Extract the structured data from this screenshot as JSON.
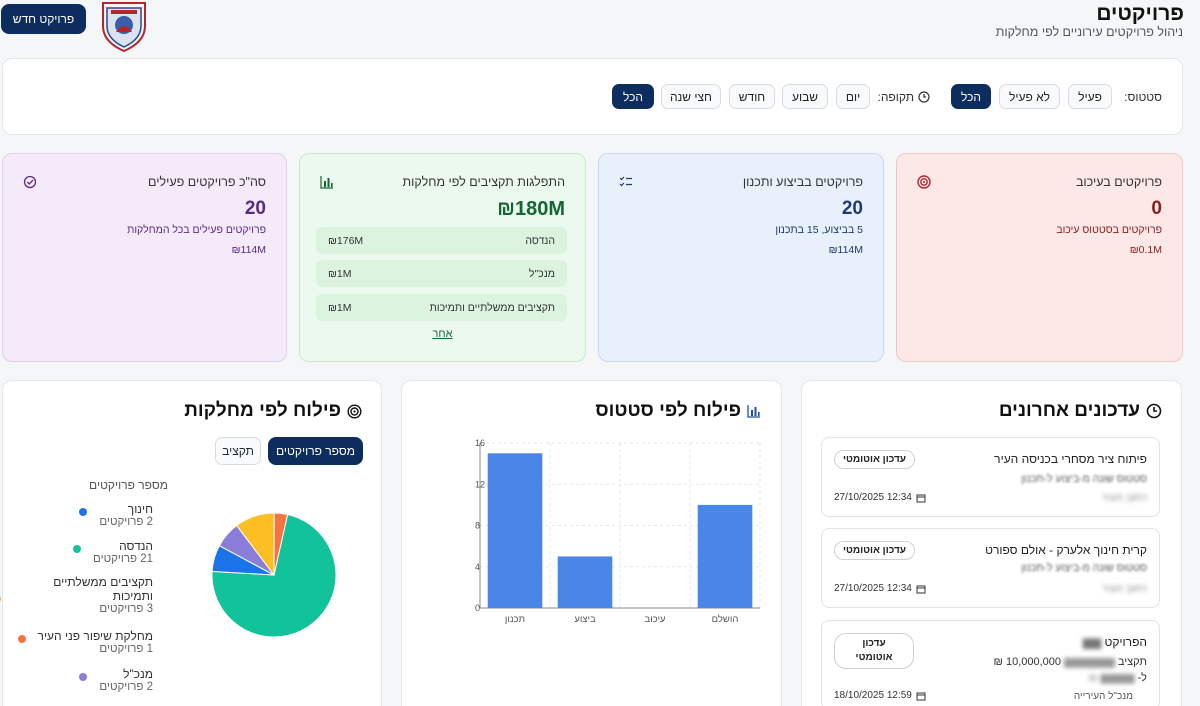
{
  "header": {
    "title": "פרויקטים",
    "subtitle": "ניהול פרויקטים עירוניים לפי מחלקות",
    "new_project_label": "פרויקט חדש"
  },
  "filters": {
    "status_label": "סטטוס:",
    "status_options": [
      "פעיל",
      "לא פעיל",
      "הכל"
    ],
    "status_selected": "הכל",
    "period_label": "תקופה:",
    "period_options": [
      "יום",
      "שבוע",
      "חודש",
      "חצי שנה",
      "הכל"
    ],
    "period_selected": "הכל"
  },
  "cards": {
    "delayed": {
      "title": "פרויקטים בעיכוב",
      "value": "0",
      "sub": "פרויקטים בסטטוס עיכוב",
      "money": "₪0.1M",
      "icon": "target-icon",
      "color": "#8b1d1d"
    },
    "in_progress": {
      "title": "פרויקטים בביצוע ותכנון",
      "value": "20",
      "sub": "5 בביצוע, 15 בתכנון",
      "money": "₪114M",
      "icon": "checklist-icon",
      "color": "#1e3a6e"
    },
    "budgets": {
      "title": "התפלגות תקציבים לפי מחלקות",
      "value": "₪180M",
      "rows": [
        {
          "label": "הנדסה",
          "amount": "₪176M"
        },
        {
          "label": "מנכ\"ל",
          "amount": "₪1M"
        },
        {
          "label": "תקציבים ממשלתיים ותמיכות",
          "amount": "₪1M"
        }
      ],
      "more_link": "אחר",
      "icon": "bar-chart-icon",
      "color": "#166534"
    },
    "total_active": {
      "title": "סה\"כ פרויקטים פעילים",
      "value": "20",
      "sub": "פרויקטים פעילים בכל המחלקות",
      "money": "₪114M",
      "icon": "check-circle-icon",
      "color": "#5b2a86"
    }
  },
  "recent_updates": {
    "title": "עדכונים אחרונים",
    "items": [
      {
        "title": "פיתוח ציר מסחרי בכניסה העיר",
        "badge": "עדכון אוטומטי",
        "line2": "סטטוס שונה מ-ביצוע ל-תכנון",
        "line3": "רחוב העיר",
        "date": "12:34 27/10/2025"
      },
      {
        "title": "קרית חינוך אלערק - אולם ספורט",
        "badge": "עדכון אוטומטי",
        "line2": "סטטוס שונה מ-ביצוע ל-תכנון",
        "line3": "רחוב העיר",
        "date": "12:34 27/10/2025"
      },
      {
        "title": "הפרויקט",
        "badge": "עדכון אוטומטי",
        "line2a": "תקציב",
        "line2b": "10,000,000 ₪",
        "line3": "ל-",
        "line4": "מנכ\"ל העירייה",
        "date": "12:59 18/10/2025"
      }
    ]
  },
  "status_chart_panel": {
    "title": "פילוח לפי סטטוס"
  },
  "chart_data": {
    "type": "bar",
    "categories": [
      "תכנון",
      "ביצוע",
      "עיכוב",
      "הושלם"
    ],
    "values": [
      15,
      5,
      0,
      10
    ],
    "ylim": [
      0,
      16
    ],
    "yticks": [
      0,
      4,
      8,
      12,
      16
    ],
    "grid": true,
    "color": "#4a86e8"
  },
  "department_panel": {
    "title": "פילוח לפי מחלקות",
    "toggle_options": [
      "מספר פרויקטים",
      "תקציב"
    ],
    "toggle_selected": "מספר פרויקטים",
    "legend_title": "מספר פרויקטים",
    "legend": [
      {
        "name": "חינוך",
        "sub": "2 פרויקטים",
        "value": 2,
        "color": "#1a73e8"
      },
      {
        "name": "הנדסה",
        "sub": "21 פרויקטים",
        "value": 21,
        "color": "#12c29b"
      },
      {
        "name": "תקציבים ממשלתיים ותמיכות",
        "sub": "3 פרויקטים",
        "value": 3,
        "color": "#fbbf24"
      },
      {
        "name": "מחלקת שיפור פני העיר",
        "sub": "1 פרויקטים",
        "value": 1,
        "color": "#f97340"
      },
      {
        "name": "מנכ\"ל",
        "sub": "2 פרויקטים",
        "value": 2,
        "color": "#8b7ed8"
      }
    ]
  }
}
